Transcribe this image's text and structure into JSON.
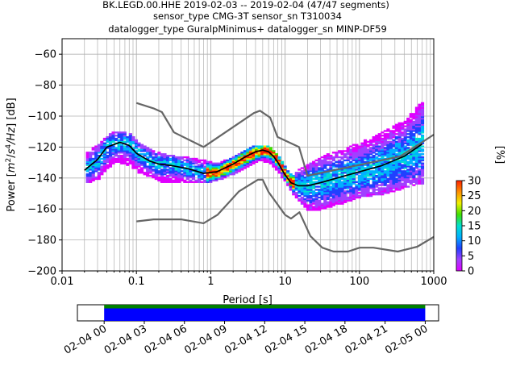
{
  "chart_data": [
    {
      "type": "heatmap",
      "title_lines": [
        "BK.LEGD.00.HHE   2019-02-03 -- 2019-02-04  (47/47 segments)",
        "sensor_type CMG-3T sensor_sn T310034",
        "datalogger_type GuralpMinimus+ datalogger_sn MINP-DF59"
      ],
      "xlabel": "Period [s]",
      "ylabel_parts": [
        "Power [",
        "m",
        "2",
        "/",
        "s",
        "4",
        "/Hz",
        "] [dB]"
      ],
      "x_scale": "log",
      "xlim": [
        0.01,
        1000
      ],
      "ylim": [
        -200,
        -50
      ],
      "x_ticks": [
        0.01,
        0.1,
        1,
        10,
        100,
        1000
      ],
      "x_tick_labels": [
        "0.01",
        "0.1",
        "1",
        "10",
        "100",
        "1000"
      ],
      "y_ticks": [
        -200,
        -180,
        -160,
        -140,
        -120,
        -100,
        -80,
        -60
      ],
      "y_tick_labels": [
        "−200",
        "−180",
        "−160",
        "−140",
        "−120",
        "−100",
        "−80",
        "−60"
      ],
      "grid": true,
      "colorbar": {
        "label": "[%]",
        "range": [
          0,
          30
        ],
        "ticks": [
          0,
          5,
          10,
          15,
          20,
          25,
          30
        ],
        "tick_labels": [
          "0",
          "5",
          "10",
          "15",
          "20",
          "25",
          "30"
        ],
        "colors": [
          "#ffffff",
          "#e000ff",
          "#a040ff",
          "#2040ff",
          "#00b0ff",
          "#00e0d0",
          "#40e000",
          "#f0f000",
          "#ff9000",
          "#ff2000"
        ]
      },
      "mean_curve": {
        "period": [
          0.02,
          0.03,
          0.04,
          0.06,
          0.08,
          0.1,
          0.15,
          0.2,
          0.3,
          0.5,
          0.8,
          1.2,
          2,
          3,
          4,
          5,
          6,
          7,
          8,
          10,
          12,
          15,
          20,
          30,
          50,
          100,
          200,
          400,
          700
        ],
        "power": [
          -135,
          -128,
          -120,
          -117,
          -119,
          -124,
          -129,
          -131,
          -132,
          -134,
          -137,
          -136,
          -131,
          -126,
          -123,
          -122,
          -123,
          -126,
          -130,
          -138,
          -143,
          -145,
          -145,
          -143,
          -140,
          -136,
          -132,
          -126,
          -118
        ],
        "color": "#000000"
      },
      "noise_models": [
        {
          "period": [
            0.1,
            0.17,
            0.22,
            0.32,
            0.8,
            3.8,
            4.6,
            6.3,
            7.9,
            15.4,
            20,
            354.8,
            1000
          ],
          "power": [
            -91.5,
            -95,
            -97.4,
            -110.5,
            -120,
            -98,
            -96.5,
            -101,
            -113.5,
            -120,
            -138.5,
            -126,
            -112
          ],
          "color": "#666666"
        },
        {
          "period": [
            0.1,
            0.17,
            0.4,
            0.8,
            1.24,
            2.4,
            4.3,
            5,
            6,
            10,
            12,
            15.6,
            21.9,
            31.6,
            45,
            70,
            101,
            154,
            328,
            600,
            1000
          ],
          "power": [
            -168,
            -166.7,
            -166.7,
            -169.2,
            -163.7,
            -148.6,
            -141.1,
            -141.1,
            -149,
            -163.8,
            -166.2,
            -162.1,
            -177.5,
            -185,
            -187.5,
            -187.5,
            -185,
            -185,
            -187.5,
            -184.4,
            -178
          ]
        }
      ],
      "pdf_envelope": {
        "period": [
          0.02,
          0.03,
          0.04,
          0.05,
          0.06,
          0.08,
          0.1,
          0.15,
          0.2,
          0.3,
          0.5,
          0.8,
          1.2,
          2,
          3,
          4,
          5,
          6,
          7,
          8,
          10,
          12,
          15,
          20,
          30,
          50,
          100,
          200,
          400,
          700
        ],
        "power_max": [
          -124,
          -118,
          -112,
          -110,
          -110,
          -112,
          -117,
          -122,
          -124,
          -126,
          -127,
          -129,
          -131,
          -126,
          -121,
          -119,
          -119,
          -120,
          -123,
          -127,
          -134,
          -139,
          -134,
          -131,
          -126,
          -123,
          -117,
          -110,
          -103,
          -89
        ],
        "power_min": [
          -143,
          -140,
          -133,
          -130,
          -130,
          -132,
          -136,
          -139,
          -142,
          -143,
          -143,
          -143,
          -141,
          -137,
          -132,
          -129,
          -129,
          -130,
          -133,
          -137,
          -143,
          -150,
          -155,
          -161,
          -160,
          -157,
          -152,
          -150,
          -146,
          -143
        ]
      }
    },
    {
      "type": "bar",
      "title": "",
      "x_tick_labels": [
        "02-04 00",
        "02-04 03",
        "02-04 06",
        "02-04 09",
        "02-04 12",
        "02-04 15",
        "02-04 18",
        "02-04 21",
        "02-05 00"
      ],
      "x_range": [
        "2019-02-03 22:00",
        "2019-02-05 01:00"
      ],
      "segments": [
        {
          "name": "",
          "start": "2019-02-04 00:00",
          "end": "2019-02-05 00:00",
          "color": "#008000"
        },
        {
          "name": "",
          "start": "2019-02-04 00:00",
          "end": "2019-02-05 00:00",
          "color": "#0000ff"
        }
      ]
    }
  ]
}
